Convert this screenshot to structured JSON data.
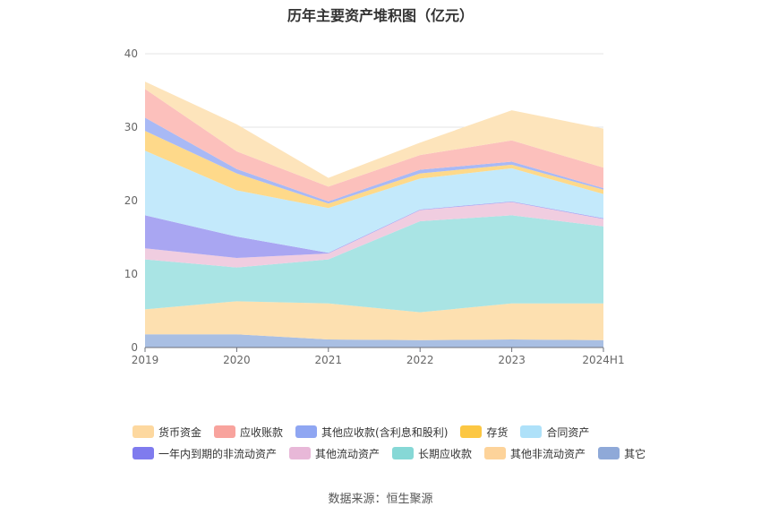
{
  "title": "历年主要资产堆积图（亿元）",
  "source": "数据来源：恒生聚源",
  "chart_data": {
    "type": "area",
    "stacked": true,
    "categories": [
      "2019",
      "2020",
      "2021",
      "2022",
      "2023",
      "2024H1"
    ],
    "ylim": [
      0,
      40
    ],
    "yticks": [
      "0",
      "10",
      "20",
      "30",
      "40"
    ],
    "grid": true,
    "legend_position": "bottom",
    "series": [
      {
        "name": "其它",
        "color": "#a9bfe3",
        "values": [
          1.8,
          1.8,
          1.1,
          1.0,
          1.1,
          1.0
        ]
      },
      {
        "name": "其他非流动资产",
        "color": "#fde0b0",
        "values": [
          3.4,
          4.5,
          4.9,
          3.8,
          4.9,
          5.0
        ]
      },
      {
        "name": "长期应收款",
        "color": "#a9e4e4",
        "values": [
          6.8,
          4.6,
          6.0,
          12.4,
          12.0,
          10.5
        ]
      },
      {
        "name": "其他流动资产",
        "color": "#f0cde0",
        "values": [
          1.5,
          1.3,
          0.8,
          1.5,
          1.8,
          1.0
        ]
      },
      {
        "name": "一年内到期的非流动资产",
        "color": "#a9a6f2",
        "values": [
          4.5,
          2.9,
          0.1,
          0.1,
          0.1,
          0.1
        ]
      },
      {
        "name": "合同资产",
        "color": "#c3e9fb",
        "values": [
          8.8,
          6.3,
          6.1,
          4.2,
          4.5,
          3.3
        ]
      },
      {
        "name": "存货",
        "color": "#fed98a",
        "values": [
          2.7,
          2.3,
          0.6,
          0.7,
          0.5,
          0.6
        ]
      },
      {
        "name": "其他应收款(含利息和股利)",
        "color": "#a8b9f5",
        "values": [
          1.8,
          0.6,
          0.3,
          0.5,
          0.4,
          0.2
        ]
      },
      {
        "name": "应收账款",
        "color": "#fcc0bc",
        "values": [
          3.9,
          2.4,
          2.0,
          2.0,
          2.9,
          2.8
        ]
      },
      {
        "name": "货币资金",
        "color": "#fde4bb",
        "values": [
          1.0,
          3.7,
          1.2,
          1.7,
          4.1,
          5.3
        ]
      }
    ],
    "legend_order": [
      "货币资金",
      "应收账款",
      "其他应收款(含利息和股利)",
      "存货",
      "合同资产",
      "一年内到期的非流动资产",
      "其他流动资产",
      "长期应收款",
      "其他非流动资产",
      "其它"
    ],
    "legend_colors": {
      "货币资金": "#fdd89f",
      "应收账款": "#f8a39d",
      "其他应收款(含利息和股利)": "#8fa6f2",
      "存货": "#fcc743",
      "合同资产": "#aee1f9",
      "一年内到期的非流动资产": "#7f7bee",
      "其他流动资产": "#e8b8d8",
      "长期应收款": "#86d8d6",
      "其他非流动资产": "#fdd39a",
      "其它": "#8fa9d8"
    }
  }
}
